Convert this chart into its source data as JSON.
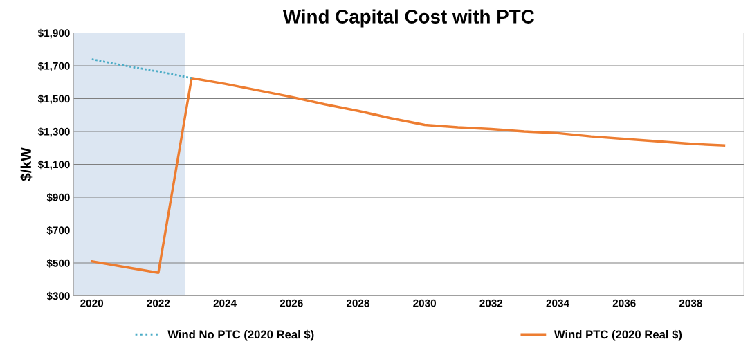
{
  "chart_data": {
    "type": "line",
    "title": "Wind Capital Cost with PTC",
    "ylabel": "$/kW",
    "xlim": [
      2019.45,
      2039.6
    ],
    "xticks": [
      2020,
      2022,
      2024,
      2026,
      2028,
      2030,
      2032,
      2034,
      2036,
      2038
    ],
    "ylim": [
      300,
      1900
    ],
    "yticks": [
      {
        "value": 300,
        "label": "$300"
      },
      {
        "value": 500,
        "label": "$500"
      },
      {
        "value": 700,
        "label": "$700"
      },
      {
        "value": 900,
        "label": "$900"
      },
      {
        "value": 1100,
        "label": "$1,100"
      },
      {
        "value": 1300,
        "label": "$1,300"
      },
      {
        "value": 1500,
        "label": "$1,500"
      },
      {
        "value": 1700,
        "label": "$1,700"
      },
      {
        "value": 1900,
        "label": "$1,900"
      }
    ],
    "grid": "y",
    "legend": "bottom",
    "bands": [
      {
        "axis": "x",
        "from": 2019.45,
        "to": 2022.8,
        "color": "#dce6f2"
      }
    ],
    "series": [
      {
        "name": "Wind No PTC (2020 Real $)",
        "color": "#4bacc6",
        "line_style": "dotted",
        "x": [
          2020,
          2021,
          2022,
          2023
        ],
        "values": [
          1740,
          1700,
          1665,
          1625
        ]
      },
      {
        "name": "Wind PTC (2020 Real $)",
        "color": "#ed7d31",
        "line_style": "solid",
        "x": [
          2020,
          2021,
          2022,
          2023,
          2024,
          2025,
          2026,
          2027,
          2028,
          2029,
          2030,
          2031,
          2032,
          2033,
          2034,
          2035,
          2036,
          2037,
          2038,
          2039
        ],
        "values": [
          510,
          475,
          440,
          1625,
          1590,
          1550,
          1510,
          1465,
          1425,
          1380,
          1340,
          1325,
          1315,
          1300,
          1290,
          1270,
          1255,
          1240,
          1225,
          1215
        ]
      }
    ]
  }
}
